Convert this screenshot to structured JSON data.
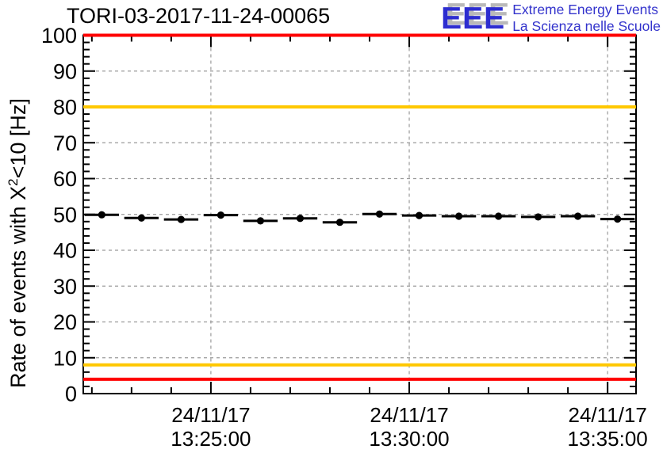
{
  "header": {
    "title": "TORI-03-2017-11-24-00065",
    "logo": {
      "acronym": "EEE",
      "tagline_line1": "Extreme Energy Events",
      "tagline_line2": "La Scienza nelle Scuole",
      "text_color": "#2d2dd0",
      "shadow_color": "#b9b9b9"
    }
  },
  "y_axis_label": {
    "prefix": "Rate of events with X",
    "superscript": "2",
    "suffix": "<10 [Hz]"
  },
  "chart_data": {
    "type": "scatter",
    "title": "TORI-03-2017-11-24-00065",
    "ylabel": "Rate of events with X^2<10 [Hz]",
    "xlabel": "",
    "ylim": [
      0,
      100
    ],
    "y_major_step": 10,
    "y_minor_step": 2,
    "grid": true,
    "grid_color": "#9a9a9a",
    "axis_color": "#000000",
    "x_domain_seconds": [
      48107,
      48943
    ],
    "x_minor_step_seconds": 60,
    "x_major_ticks": [
      {
        "seconds": 48300,
        "date": "24/11/17",
        "time": "13:25:00"
      },
      {
        "seconds": 48600,
        "date": "24/11/17",
        "time": "13:30:00"
      },
      {
        "seconds": 48900,
        "date": "24/11/17",
        "time": "13:35:00"
      }
    ],
    "y_tick_labels": [
      0,
      10,
      20,
      30,
      40,
      50,
      60,
      70,
      80,
      90,
      100
    ],
    "thresholds": [
      {
        "y": 100,
        "color": "#ff0000"
      },
      {
        "y": 80,
        "color": "#ffc800"
      },
      {
        "y": 8,
        "color": "#ffc800"
      },
      {
        "y": 4,
        "color": "#ff0000"
      }
    ],
    "series": [
      {
        "name": "rate",
        "marker": "filled-circle",
        "color": "#000000",
        "x_error_seconds": 26,
        "points": [
          {
            "time": "13:22:15",
            "seconds": 48135,
            "rate_hz": 49.9
          },
          {
            "time": "13:23:15",
            "seconds": 48195,
            "rate_hz": 49.0
          },
          {
            "time": "13:24:15",
            "seconds": 48255,
            "rate_hz": 48.6
          },
          {
            "time": "13:25:15",
            "seconds": 48315,
            "rate_hz": 49.8
          },
          {
            "time": "13:26:15",
            "seconds": 48375,
            "rate_hz": 48.2
          },
          {
            "time": "13:27:15",
            "seconds": 48435,
            "rate_hz": 48.9
          },
          {
            "time": "13:28:15",
            "seconds": 48495,
            "rate_hz": 47.8
          },
          {
            "time": "13:29:15",
            "seconds": 48555,
            "rate_hz": 50.1
          },
          {
            "time": "13:30:15",
            "seconds": 48615,
            "rate_hz": 49.7
          },
          {
            "time": "13:31:15",
            "seconds": 48675,
            "rate_hz": 49.5
          },
          {
            "time": "13:32:15",
            "seconds": 48735,
            "rate_hz": 49.5
          },
          {
            "time": "13:33:15",
            "seconds": 48795,
            "rate_hz": 49.3
          },
          {
            "time": "13:34:15",
            "seconds": 48855,
            "rate_hz": 49.5
          },
          {
            "time": "13:35:15",
            "seconds": 48915,
            "rate_hz": 48.7
          }
        ]
      }
    ]
  }
}
